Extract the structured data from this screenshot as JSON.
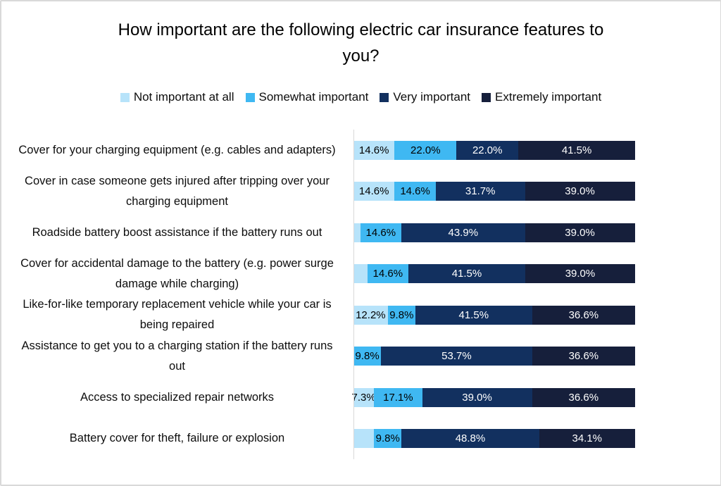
{
  "chart_data": {
    "type": "bar",
    "variant": "horizontal-stacked-percent",
    "title": "How important are the following electric car insurance features to you?",
    "legend_position": "top",
    "grid": false,
    "x_range": [
      0,
      100
    ],
    "axis_line_color": "#d9d9d9",
    "categories": [
      "Cover for your charging equipment (e.g. cables and adapters)",
      "Cover in case someone gets injured after tripping over your charging equipment",
      "Roadside battery boost assistance if the battery runs out",
      "Cover for accidental damage to the battery (e.g. power surge damage while charging)",
      "Like-for-like temporary replacement vehicle while your car is being repaired",
      "Assistance to get you to a charging station if the battery runs out",
      "Access to specialized repair networks",
      "Battery cover for theft, failure or explosion"
    ],
    "series": [
      {
        "name": "Not important at all",
        "color": "#b7e3fa",
        "label_color": "#000000",
        "values": [
          14.6,
          14.6,
          2.4,
          4.9,
          12.2,
          0,
          7.3,
          7.3
        ],
        "labels": [
          "14.6%",
          "14.6%",
          "",
          "",
          "12.2%",
          "",
          "7.3%",
          ""
        ]
      },
      {
        "name": "Somewhat important",
        "color": "#3fb8f2",
        "label_color": "#000000",
        "values": [
          22.0,
          14.6,
          14.6,
          14.6,
          9.8,
          9.8,
          17.1,
          9.8
        ],
        "labels": [
          "22.0%",
          "14.6%",
          "14.6%",
          "14.6%",
          "9.8%",
          "9.8%",
          "17.1%",
          "9.8%"
        ]
      },
      {
        "name": "Very important",
        "color": "#12305f",
        "label_color": "#ffffff",
        "values": [
          22.0,
          31.7,
          43.9,
          41.5,
          41.5,
          53.7,
          39.0,
          48.8
        ],
        "labels": [
          "22.0%",
          "31.7%",
          "43.9%",
          "41.5%",
          "41.5%",
          "53.7%",
          "39.0%",
          "48.8%"
        ]
      },
      {
        "name": "Extremely important",
        "color": "#161f3b",
        "label_color": "#ffffff",
        "values": [
          41.5,
          39.0,
          39.0,
          39.0,
          36.6,
          36.6,
          36.6,
          34.1
        ],
        "labels": [
          "41.5%",
          "39.0%",
          "39.0%",
          "39.0%",
          "36.6%",
          "36.6%",
          "36.6%",
          "34.1%"
        ]
      }
    ]
  }
}
